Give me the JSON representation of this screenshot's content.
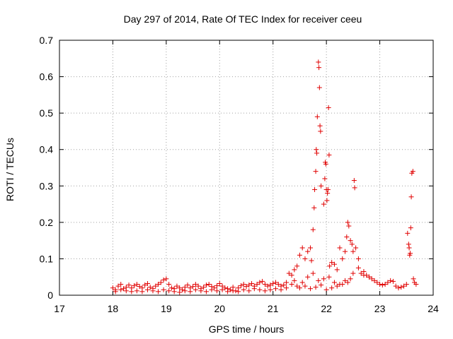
{
  "chart_data": {
    "type": "scatter",
    "title": "Day 297 of 2014, Rate Of TEC Index for receiver ceeu",
    "xlabel": "GPS time / hours",
    "ylabel": "ROTI / TECUs",
    "xlim": [
      17,
      24
    ],
    "ylim": [
      0,
      0.7
    ],
    "xticks": [
      "17",
      "18",
      "19",
      "20",
      "21",
      "22",
      "23",
      "24"
    ],
    "yticks": [
      "0",
      "0.1",
      "0.2",
      "0.3",
      "0.4",
      "0.5",
      "0.6",
      "0.7"
    ],
    "grid": true,
    "marker": "+",
    "color": "#e00000",
    "series": [
      {
        "name": "ROTI",
        "points": [
          [
            18.0,
            0.02
          ],
          [
            18.05,
            0.015
          ],
          [
            18.1,
            0.025
          ],
          [
            18.15,
            0.03
          ],
          [
            18.2,
            0.018
          ],
          [
            18.25,
            0.022
          ],
          [
            18.3,
            0.028
          ],
          [
            18.35,
            0.02
          ],
          [
            18.4,
            0.026
          ],
          [
            18.45,
            0.03
          ],
          [
            18.5,
            0.024
          ],
          [
            18.55,
            0.02
          ],
          [
            18.6,
            0.028
          ],
          [
            18.65,
            0.032
          ],
          [
            18.7,
            0.022
          ],
          [
            18.75,
            0.018
          ],
          [
            18.8,
            0.025
          ],
          [
            18.85,
            0.03
          ],
          [
            18.9,
            0.035
          ],
          [
            18.95,
            0.042
          ],
          [
            19.0,
            0.045
          ],
          [
            19.05,
            0.03
          ],
          [
            19.1,
            0.02
          ],
          [
            19.15,
            0.018
          ],
          [
            19.2,
            0.025
          ],
          [
            19.25,
            0.02
          ],
          [
            19.3,
            0.015
          ],
          [
            19.35,
            0.022
          ],
          [
            19.4,
            0.028
          ],
          [
            19.45,
            0.02
          ],
          [
            19.5,
            0.024
          ],
          [
            19.55,
            0.03
          ],
          [
            19.6,
            0.025
          ],
          [
            19.65,
            0.018
          ],
          [
            19.7,
            0.022
          ],
          [
            19.75,
            0.028
          ],
          [
            19.8,
            0.03
          ],
          [
            19.85,
            0.024
          ],
          [
            19.9,
            0.02
          ],
          [
            19.95,
            0.026
          ],
          [
            20.0,
            0.032
          ],
          [
            20.05,
            0.025
          ],
          [
            20.1,
            0.02
          ],
          [
            20.15,
            0.018
          ],
          [
            20.2,
            0.015
          ],
          [
            20.25,
            0.022
          ],
          [
            20.3,
            0.012
          ],
          [
            20.35,
            0.02
          ],
          [
            20.4,
            0.026
          ],
          [
            20.45,
            0.03
          ],
          [
            20.5,
            0.024
          ],
          [
            20.55,
            0.028
          ],
          [
            20.6,
            0.032
          ],
          [
            20.65,
            0.025
          ],
          [
            20.7,
            0.03
          ],
          [
            20.75,
            0.035
          ],
          [
            20.8,
            0.038
          ],
          [
            20.85,
            0.03
          ],
          [
            20.9,
            0.025
          ],
          [
            20.95,
            0.028
          ],
          [
            21.0,
            0.032
          ],
          [
            21.05,
            0.035
          ],
          [
            21.1,
            0.03
          ],
          [
            21.15,
            0.025
          ],
          [
            21.2,
            0.028
          ],
          [
            21.25,
            0.035
          ],
          [
            21.3,
            0.06
          ],
          [
            21.35,
            0.055
          ],
          [
            21.4,
            0.07
          ],
          [
            21.45,
            0.08
          ],
          [
            21.5,
            0.11
          ],
          [
            21.55,
            0.13
          ],
          [
            21.6,
            0.1
          ],
          [
            21.65,
            0.12
          ],
          [
            21.7,
            0.13
          ],
          [
            21.72,
            0.095
          ],
          [
            21.75,
            0.18
          ],
          [
            21.77,
            0.24
          ],
          [
            21.78,
            0.29
          ],
          [
            21.8,
            0.34
          ],
          [
            21.81,
            0.4
          ],
          [
            21.82,
            0.39
          ],
          [
            21.83,
            0.49
          ],
          [
            21.85,
            0.64
          ],
          [
            21.86,
            0.625
          ],
          [
            21.87,
            0.57
          ],
          [
            21.88,
            0.465
          ],
          [
            21.89,
            0.45
          ],
          [
            21.9,
            0.3
          ],
          [
            21.95,
            0.25
          ],
          [
            21.97,
            0.32
          ],
          [
            21.98,
            0.365
          ],
          [
            21.99,
            0.36
          ],
          [
            22.0,
            0.29
          ],
          [
            22.01,
            0.26
          ],
          [
            22.02,
            0.28
          ],
          [
            22.03,
            0.29
          ],
          [
            22.04,
            0.515
          ],
          [
            22.05,
            0.385
          ],
          [
            22.06,
            0.08
          ],
          [
            22.1,
            0.09
          ],
          [
            22.15,
            0.085
          ],
          [
            22.2,
            0.07
          ],
          [
            22.25,
            0.13
          ],
          [
            22.3,
            0.1
          ],
          [
            22.35,
            0.12
          ],
          [
            22.38,
            0.16
          ],
          [
            22.4,
            0.2
          ],
          [
            22.42,
            0.19
          ],
          [
            22.45,
            0.15
          ],
          [
            22.48,
            0.14
          ],
          [
            22.5,
            0.12
          ],
          [
            22.52,
            0.315
          ],
          [
            22.53,
            0.295
          ],
          [
            22.55,
            0.13
          ],
          [
            22.6,
            0.1
          ],
          [
            22.65,
            0.06
          ],
          [
            22.7,
            0.055
          ],
          [
            22.75,
            0.055
          ],
          [
            22.8,
            0.05
          ],
          [
            22.85,
            0.045
          ],
          [
            22.9,
            0.04
          ],
          [
            22.95,
            0.035
          ],
          [
            23.0,
            0.03
          ],
          [
            23.05,
            0.028
          ],
          [
            23.1,
            0.03
          ],
          [
            23.15,
            0.035
          ],
          [
            23.2,
            0.04
          ],
          [
            23.25,
            0.038
          ],
          [
            23.3,
            0.025
          ],
          [
            23.35,
            0.02
          ],
          [
            23.4,
            0.022
          ],
          [
            23.45,
            0.025
          ],
          [
            23.5,
            0.03
          ],
          [
            23.52,
            0.17
          ],
          [
            23.54,
            0.14
          ],
          [
            23.55,
            0.13
          ],
          [
            23.56,
            0.11
          ],
          [
            23.57,
            0.115
          ],
          [
            23.58,
            0.185
          ],
          [
            23.59,
            0.27
          ],
          [
            23.6,
            0.335
          ],
          [
            23.62,
            0.34
          ],
          [
            23.63,
            0.045
          ],
          [
            23.65,
            0.035
          ],
          [
            23.68,
            0.03
          ],
          [
            21.5,
            0.02
          ],
          [
            21.6,
            0.025
          ],
          [
            21.7,
            0.018
          ],
          [
            21.8,
            0.022
          ],
          [
            21.9,
            0.028
          ],
          [
            22.0,
            0.015
          ],
          [
            22.1,
            0.02
          ],
          [
            22.2,
            0.025
          ],
          [
            22.3,
            0.03
          ],
          [
            22.4,
            0.035
          ],
          [
            22.5,
            0.06
          ],
          [
            22.6,
            0.075
          ],
          [
            22.7,
            0.065
          ],
          [
            22.8,
            0.05
          ],
          [
            21.4,
            0.04
          ],
          [
            21.55,
            0.035
          ],
          [
            21.65,
            0.05
          ],
          [
            21.75,
            0.06
          ],
          [
            21.85,
            0.04
          ],
          [
            21.95,
            0.045
          ],
          [
            22.05,
            0.05
          ],
          [
            22.15,
            0.035
          ],
          [
            22.25,
            0.03
          ],
          [
            22.35,
            0.04
          ],
          [
            22.45,
            0.045
          ],
          [
            21.35,
            0.03
          ],
          [
            21.45,
            0.025
          ],
          [
            21.25,
            0.02
          ],
          [
            21.15,
            0.015
          ],
          [
            21.05,
            0.018
          ],
          [
            20.95,
            0.015
          ],
          [
            20.85,
            0.012
          ],
          [
            20.75,
            0.015
          ],
          [
            20.65,
            0.018
          ],
          [
            20.55,
            0.012
          ],
          [
            20.45,
            0.015
          ],
          [
            20.35,
            0.01
          ],
          [
            20.25,
            0.012
          ],
          [
            20.15,
            0.01
          ],
          [
            20.05,
            0.015
          ],
          [
            19.95,
            0.012
          ],
          [
            19.85,
            0.015
          ],
          [
            19.75,
            0.01
          ],
          [
            19.65,
            0.012
          ],
          [
            19.55,
            0.015
          ],
          [
            19.45,
            0.01
          ],
          [
            19.35,
            0.012
          ],
          [
            19.25,
            0.008
          ],
          [
            19.15,
            0.01
          ],
          [
            19.05,
            0.012
          ],
          [
            18.95,
            0.015
          ],
          [
            18.85,
            0.01
          ],
          [
            18.75,
            0.012
          ],
          [
            18.65,
            0.015
          ],
          [
            18.55,
            0.01
          ],
          [
            18.45,
            0.012
          ],
          [
            18.35,
            0.01
          ],
          [
            18.25,
            0.012
          ],
          [
            18.15,
            0.015
          ],
          [
            18.05,
            0.01
          ]
        ]
      }
    ]
  }
}
